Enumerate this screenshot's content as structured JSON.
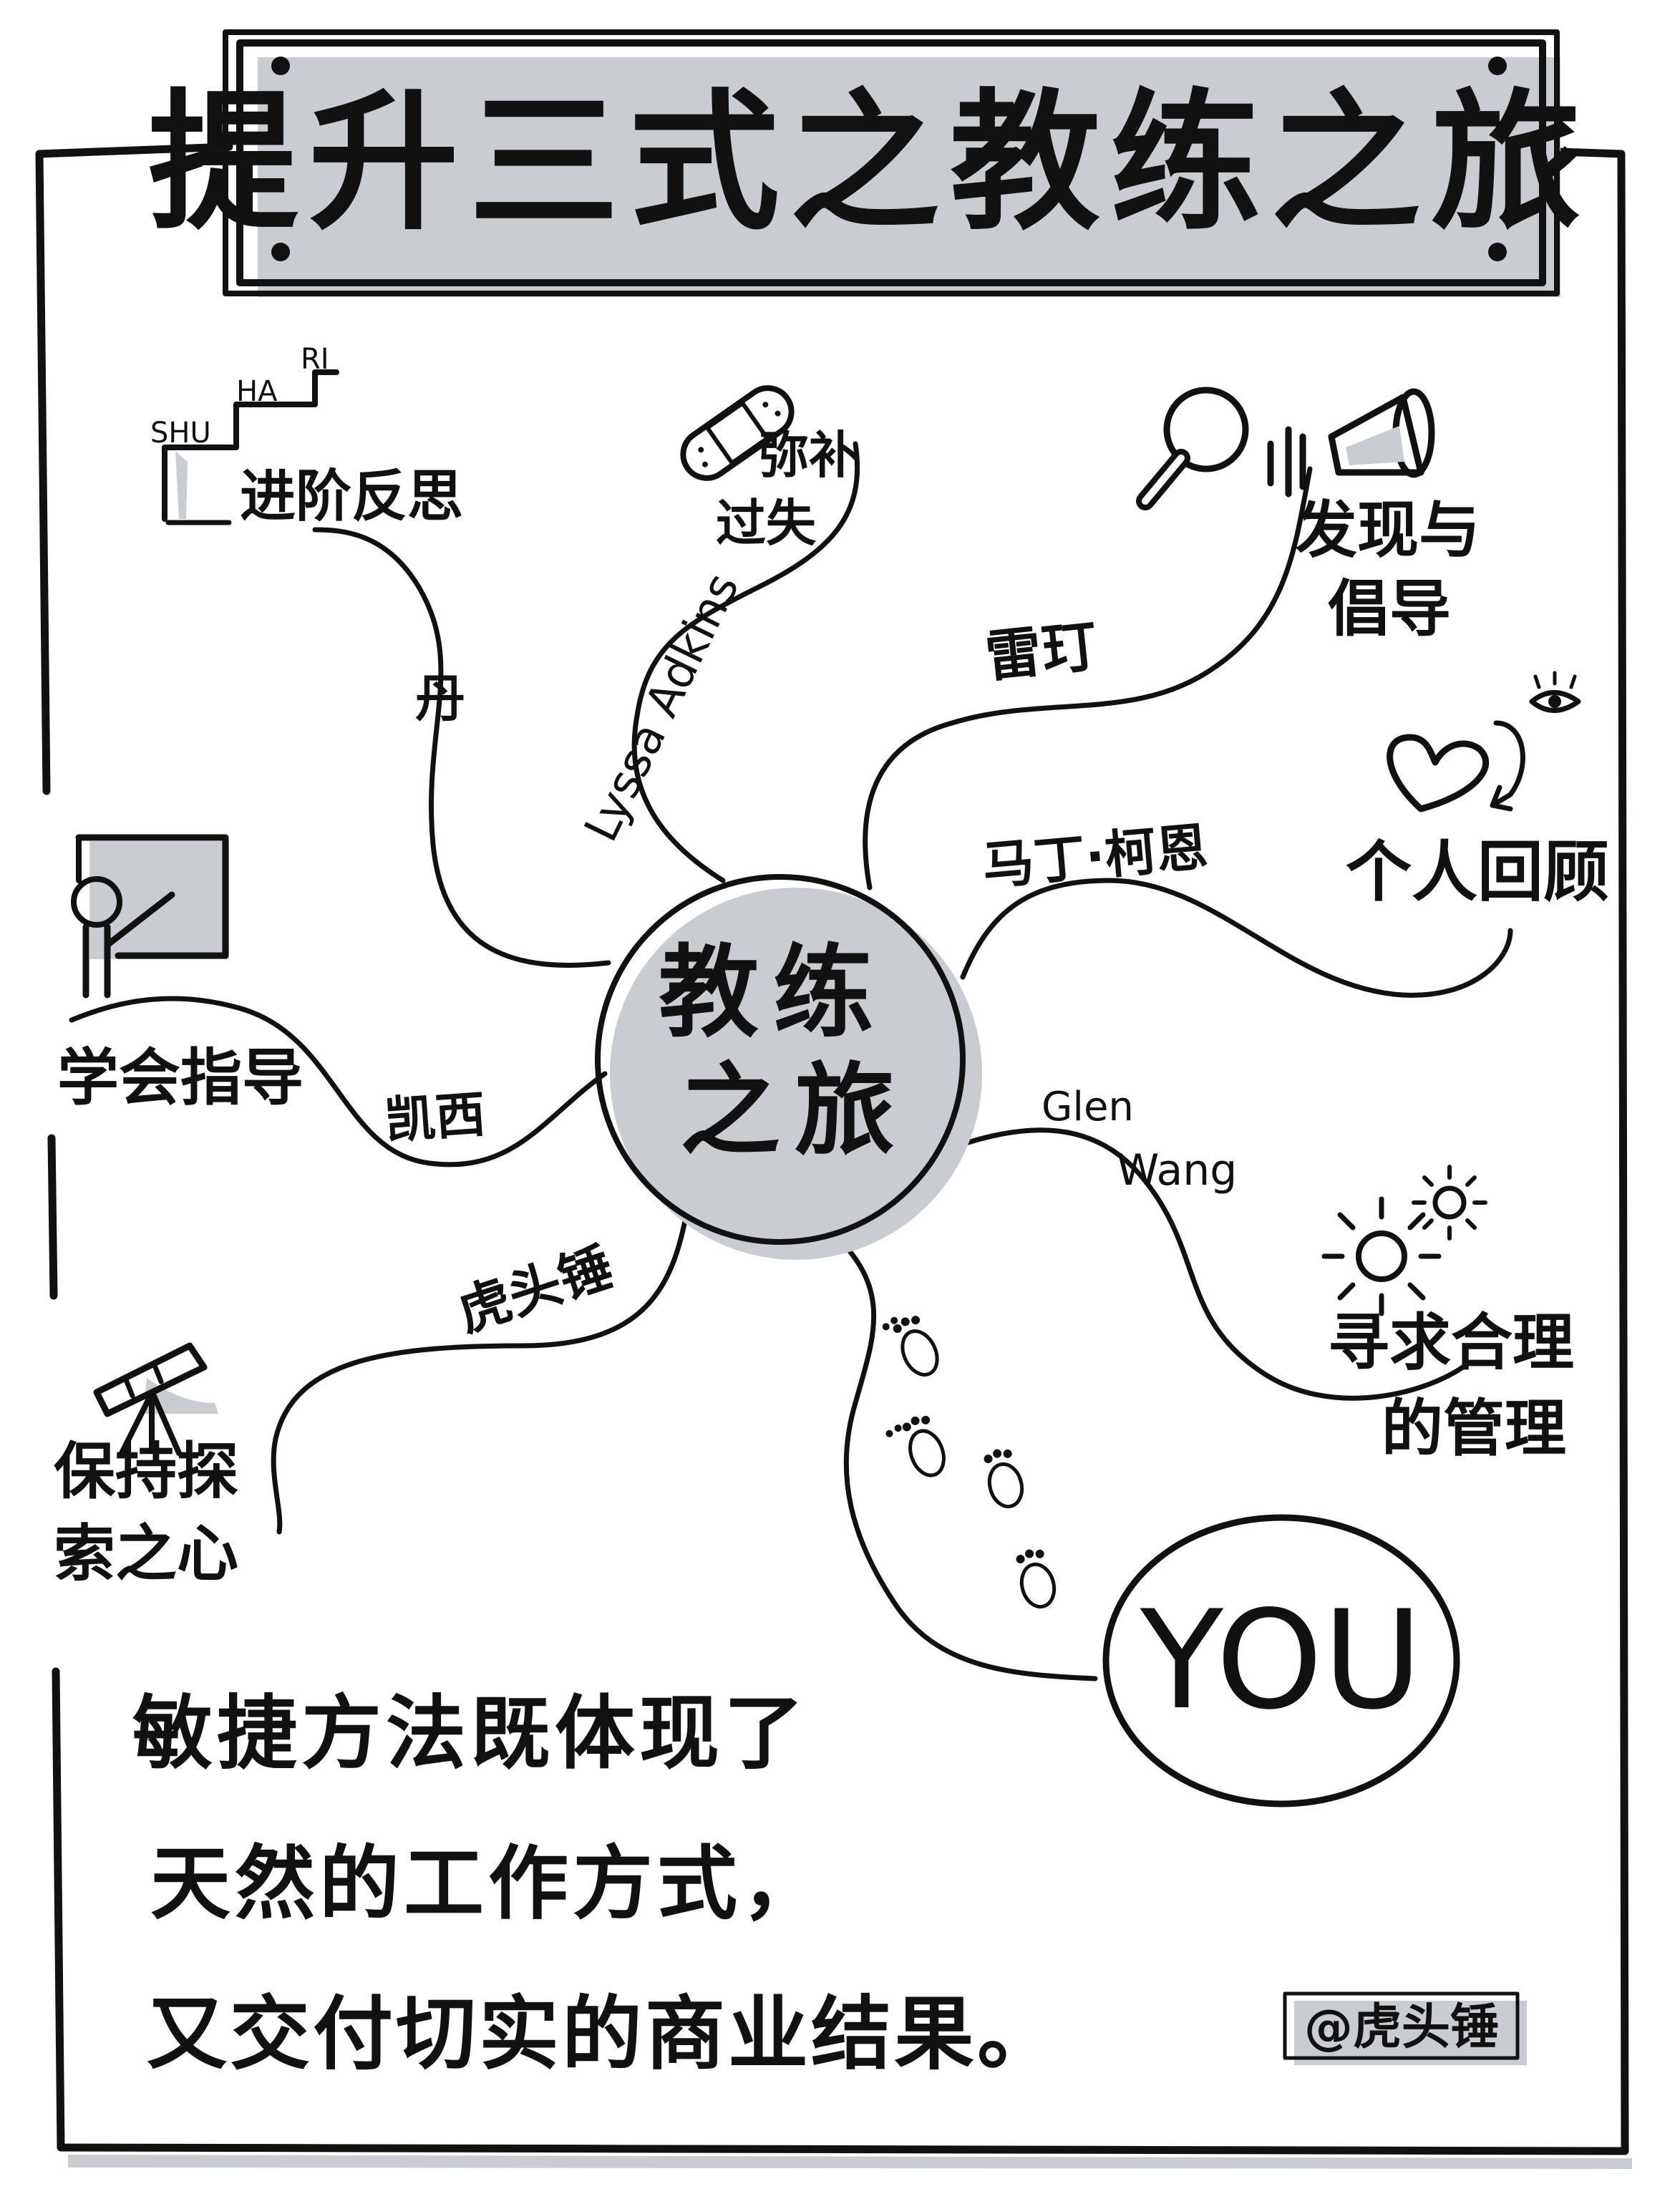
{
  "title": "提升三式之教练之旅",
  "center": {
    "line1": "教练",
    "line2": "之旅"
  },
  "branches": [
    {
      "id": "shuhari",
      "person": "丹",
      "topic": "进阶反思",
      "icon_labels": [
        "SHU",
        "HA",
        "RI"
      ],
      "icon": "stairs-icon"
    },
    {
      "id": "lyssa",
      "person": "Lyssa Adkins",
      "topic_line1": "弥补",
      "topic_line2": "过失",
      "icon": "bandage-icon"
    },
    {
      "id": "leiting",
      "person": "雷玎",
      "topic_line1": "发现与",
      "topic_line2": "倡导",
      "icon": "magnifier-megaphone-icon"
    },
    {
      "id": "marcus",
      "person": "马丁·柯恩",
      "topic": "个人回顾",
      "icon": "heart-eye-icon"
    },
    {
      "id": "kaixi",
      "person": "凯西",
      "topic": "学会指导",
      "icon": "teacher-board-icon"
    },
    {
      "id": "glen",
      "person_line1": "Glen",
      "person_line2": "Wang",
      "topic_line1": "寻求合理",
      "topic_line2": "的管理",
      "icon": "sun-icon"
    },
    {
      "id": "hutou",
      "person": "虎头锤",
      "topic_line1": "保持探",
      "topic_line2": "索之心",
      "icon": "telescope-icon"
    },
    {
      "id": "you",
      "target": "YOU",
      "icon": "footprints-icon"
    }
  ],
  "conclusion": {
    "line1": "敏捷方法既体现了",
    "line2": "天然的工作方式，",
    "line3": "又交付切实的商业结果。"
  },
  "signature": "@虎头锤",
  "colors": {
    "ink": "#111111",
    "shadow": "#c9ccd1",
    "you_fill": "#2f6fc9",
    "you_stripe": "#1f56ad",
    "foot": "#3a7fd6"
  }
}
